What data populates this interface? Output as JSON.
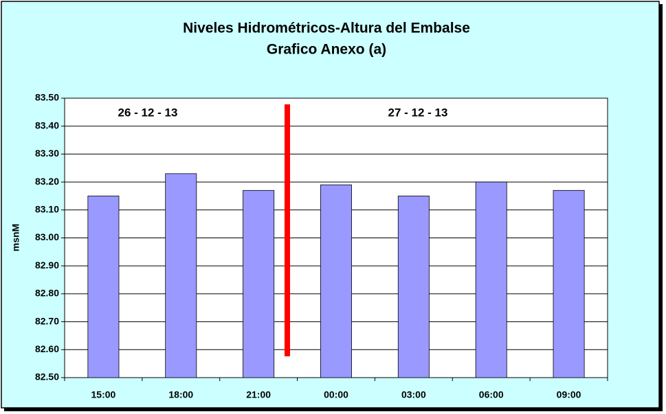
{
  "chart_data": {
    "type": "bar",
    "title": "Niveles Hidrométricos-Altura del Embalse",
    "subtitle": "Grafico Anexo (a)",
    "y_label": "msnM",
    "annotations": [
      "26 - 12 - 13",
      "27 - 12 - 13"
    ],
    "categories": [
      "15:00",
      "18:00",
      "21:00",
      "00:00",
      "03:00",
      "06:00",
      "09:00"
    ],
    "values": [
      83.15,
      83.23,
      83.17,
      83.19,
      83.15,
      83.2,
      83.17
    ],
    "color": "#9999ff",
    "ylim": [
      82.5,
      83.5
    ],
    "yticks": [
      {
        "value": 82.5,
        "label": "82.50"
      },
      {
        "value": 82.6,
        "label": "82.60"
      },
      {
        "value": 82.7,
        "label": "82.70"
      },
      {
        "value": 82.8,
        "label": "82.80"
      },
      {
        "value": 82.9,
        "label": "82.90"
      },
      {
        "value": 83.0,
        "label": "83.00"
      },
      {
        "value": 83.1,
        "label": "83.10"
      },
      {
        "value": 83.2,
        "label": "83.20"
      },
      {
        "value": 83.3,
        "label": "83.30"
      },
      {
        "value": 83.4,
        "label": "83.40"
      },
      {
        "value": 83.5,
        "label": "83.50"
      }
    ],
    "grid": true
  }
}
